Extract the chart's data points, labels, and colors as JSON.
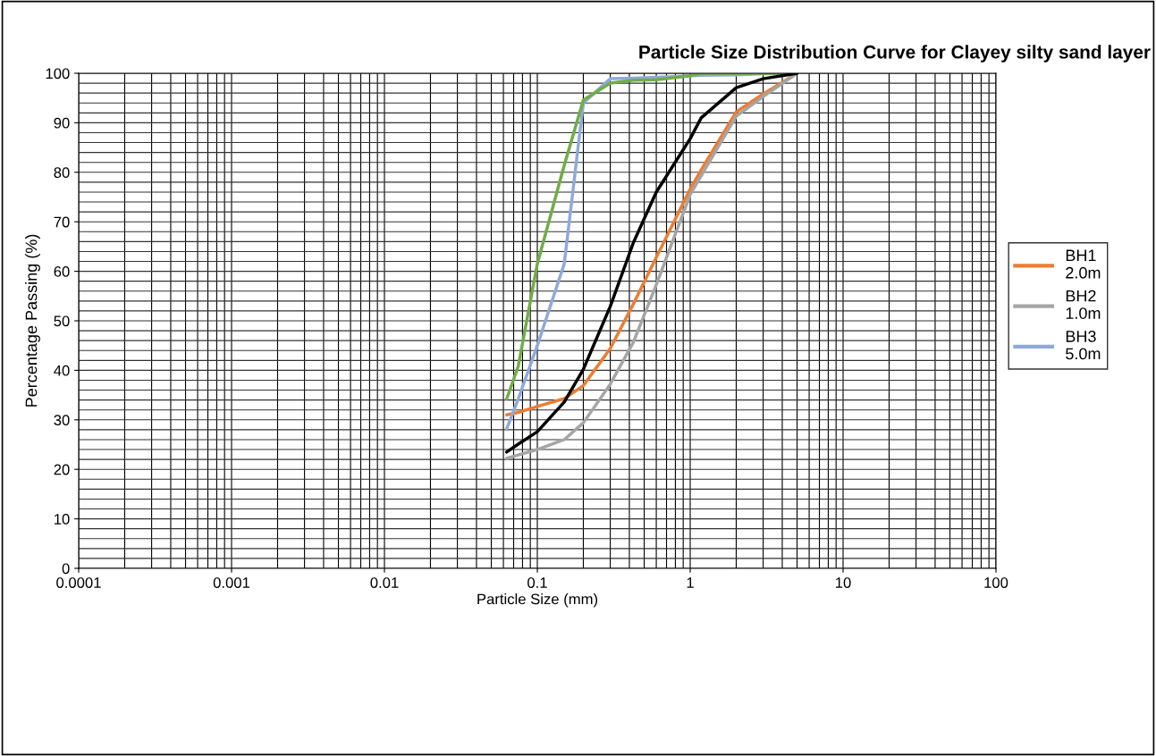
{
  "chart_data": {
    "type": "line",
    "title": "Particle Size Distribution Curve for Clayey silty sand layer",
    "xlabel": "Particle Size (mm)",
    "ylabel": "Percentage Passing (%)",
    "x": [
      0.063,
      0.075,
      0.1,
      0.15,
      0.2,
      0.3,
      0.425,
      0.6,
      1,
      1.18,
      2,
      3,
      5
    ],
    "series": [
      {
        "name": "BH1\n2.0m",
        "color": "#ed7d31",
        "values": [
          31,
          31.5,
          32.7,
          34.3,
          36.9,
          44.4,
          53.4,
          62.8,
          76.6,
          80.5,
          92.2,
          95.8,
          100
        ]
      },
      {
        "name": "BH2\n1.0m",
        "color": "#a5a5a5",
        "values": [
          22.2,
          22.9,
          24,
          26,
          29.4,
          37.2,
          45.7,
          57.3,
          75.5,
          79.3,
          91.3,
          95.3,
          100
        ]
      },
      {
        "name": "BH3\n5.0m",
        "color": "#8eaadb",
        "values": [
          28.2,
          34.2,
          45,
          61.5,
          94,
          98.9,
          99,
          99.2,
          99.5,
          99.6,
          99.7,
          99.9,
          100
        ]
      },
      {
        "color": "#70ad47",
        "values": [
          34.2,
          40.8,
          61.5,
          81.4,
          94.6,
          98,
          98.6,
          98.7,
          99.5,
          100,
          100,
          100,
          100
        ]
      },
      {
        "color": "#000000",
        "values": [
          23.5,
          25.1,
          27.6,
          33.6,
          40.2,
          52.9,
          65.8,
          76,
          86.8,
          91,
          97.1,
          98.9,
          100
        ]
      }
    ],
    "log": "x",
    "xlim": [
      0.0001,
      100
    ],
    "xticks": [
      0.0001,
      0.001,
      0.01,
      0.1,
      1,
      10,
      100
    ],
    "ylim": [
      0,
      100
    ],
    "yticks": [
      0,
      10,
      20,
      30,
      40,
      50,
      60,
      70,
      80,
      90,
      100
    ],
    "grid": true,
    "legend": "right",
    "marker": "none",
    "line_style": "solid"
  }
}
